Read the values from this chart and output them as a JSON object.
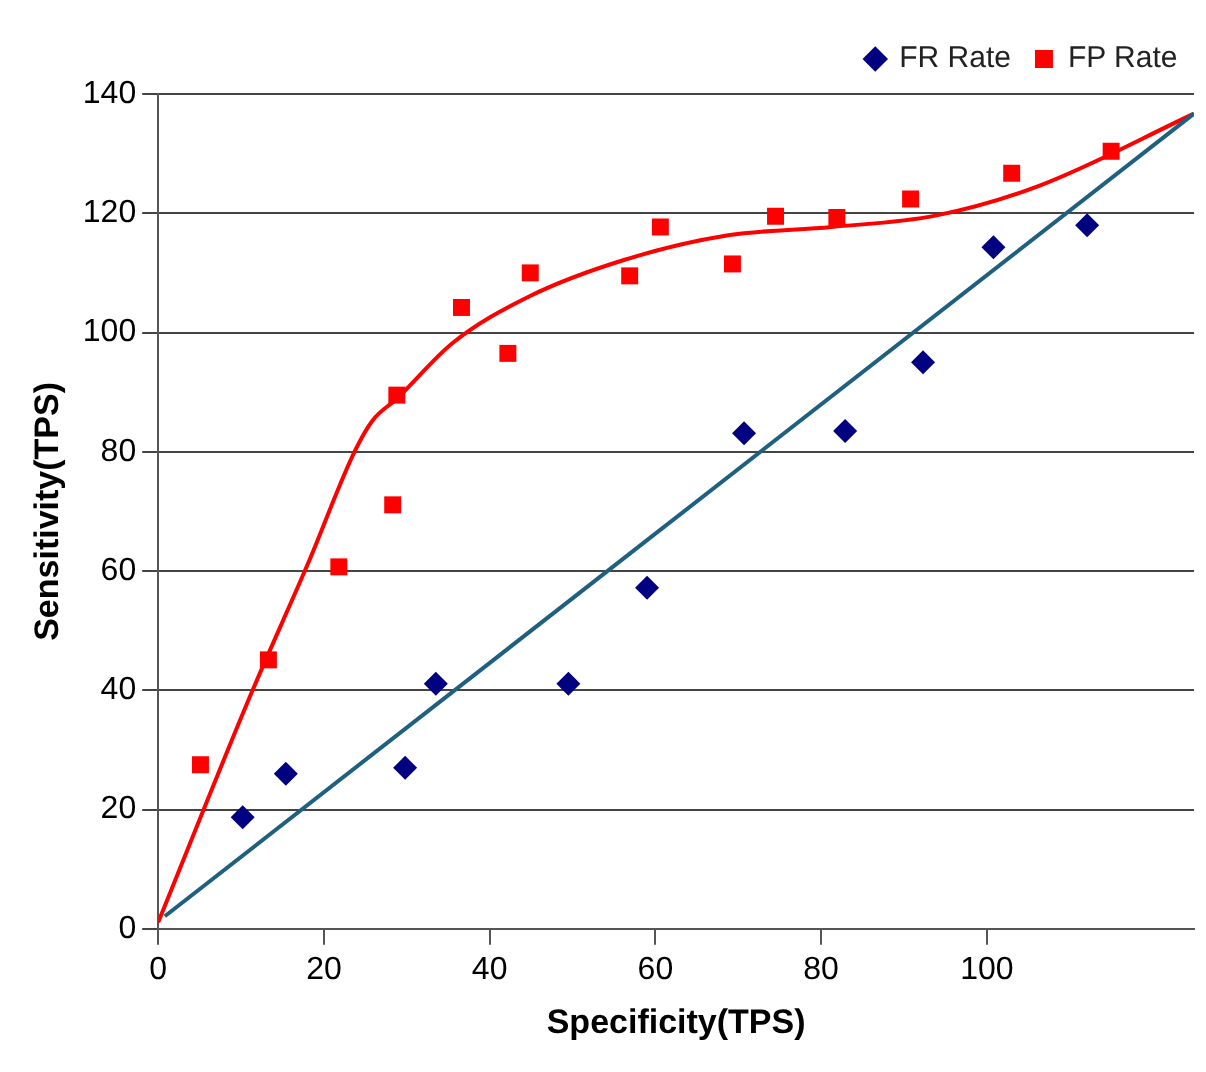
{
  "chart_data": {
    "type": "scatter",
    "xlabel": "Specificity(TPS)",
    "ylabel": "Sensitivity(TPS)",
    "xlim": [
      0,
      125
    ],
    "xticks": [
      0,
      20,
      40,
      60,
      80,
      100
    ],
    "ylim": [
      0,
      140
    ],
    "yticks": [
      0,
      20,
      40,
      60,
      80,
      100,
      120,
      140
    ],
    "grid": "y",
    "legend": "top right",
    "series": [
      {
        "name": "FR Rate",
        "type": "scatter",
        "marker": "diamond",
        "color": "#000080",
        "x": [
          10.2,
          15.4,
          29.8,
          33.5,
          49.5,
          59.0,
          70.7,
          82.9,
          92.3,
          100.8,
          112.1
        ],
        "values": [
          18.7,
          26.0,
          27.0,
          41.1,
          41.1,
          57.2,
          83.1,
          83.5,
          95.0,
          114.3,
          118.0
        ]
      },
      {
        "name": "FP Rate",
        "type": "scatter",
        "marker": "square",
        "color": "#ff0000",
        "x": [
          5.1,
          13.3,
          21.8,
          28.3,
          28.8,
          36.6,
          42.2,
          44.9,
          56.9,
          60.6,
          69.3,
          74.5,
          81.9,
          90.8,
          103.0,
          115.0
        ],
        "values": [
          27.5,
          45.1,
          60.7,
          71.1,
          89.5,
          104.2,
          96.5,
          110.0,
          109.5,
          117.7,
          111.5,
          119.5,
          119.3,
          122.4,
          126.7,
          130.4
        ]
      },
      {
        "type": "line",
        "marker": "none",
        "color": "#1f6080",
        "x": [
          0.8,
          125
        ],
        "values": [
          2.1,
          136.7
        ]
      },
      {
        "type": "line",
        "marker": "none",
        "color": "#ff0000",
        "x": [
          0,
          11.3,
          18,
          23.8,
          25.9,
          28.8,
          35.5,
          44.7,
          56.3,
          68.8,
          81.3,
          93.8,
          106.3,
          125
        ],
        "values": [
          1.1,
          39.7,
          61,
          80.3,
          85.3,
          88.9,
          98.2,
          106,
          112.2,
          116.3,
          117.7,
          119.6,
          124.6,
          136.7
        ]
      }
    ]
  }
}
